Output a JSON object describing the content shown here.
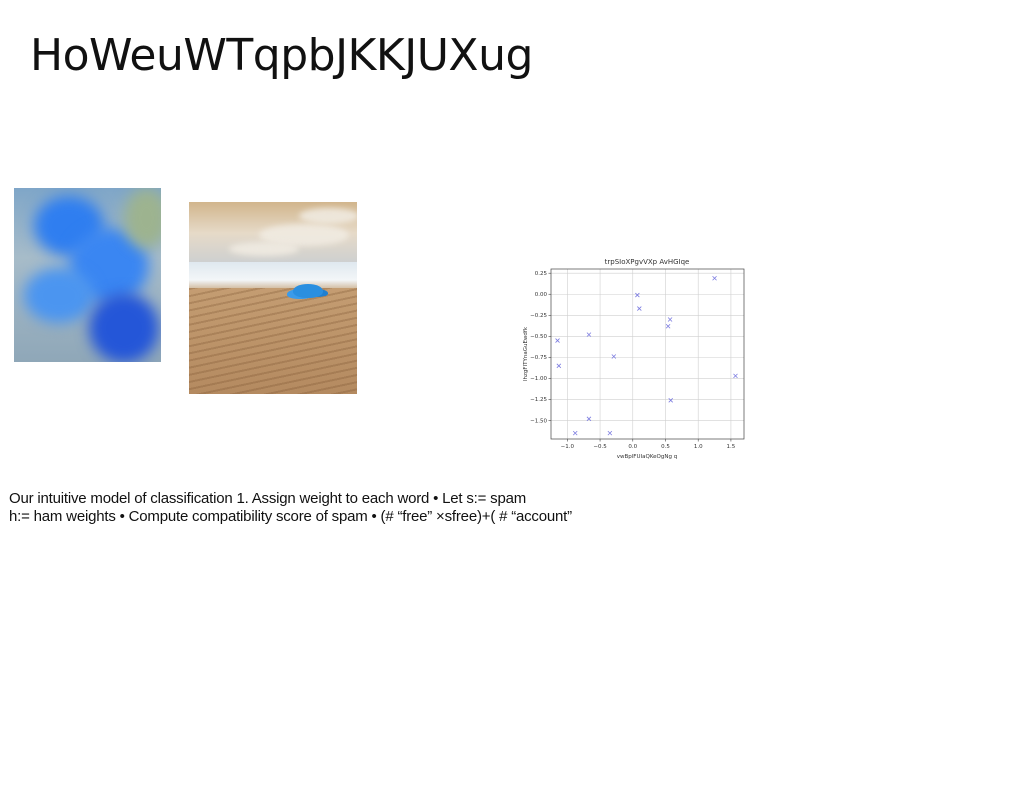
{
  "slide": {
    "title": "HoWeuWTqpbJKKJUXug",
    "body_lines": [
      "Our intuitive model of classification 1. Assign weight to each word • Let s:= spam",
      "h:= ham weights • Compute compatibility score of spam • (# “free” ×sfree)+( # “account”"
    ]
  },
  "images": [
    {
      "subject": "blue flower close-up"
    },
    {
      "subject": "desert dunes with blue tree"
    }
  ],
  "chart_data": {
    "type": "scatter",
    "title": "trpSIoXPgvVXp AvHGIqe",
    "xlabel": "vwBplFUIaQKeOgNg q",
    "ylabel": "lhzgFITYnaGuEwdfk",
    "xlim": [
      -1.25,
      1.7
    ],
    "ylim": [
      -1.72,
      0.3
    ],
    "xticks": [
      "−1.0",
      "−0.5",
      "0.0",
      "0.5",
      "1.0",
      "1.5"
    ],
    "xtick_values": [
      -1.0,
      -0.5,
      0.0,
      0.5,
      1.0,
      1.5
    ],
    "yticks": [
      "0.25",
      "0.00",
      "−0.25",
      "−0.50",
      "−0.75",
      "−1.00",
      "−1.25",
      "−1.50"
    ],
    "ytick_values": [
      0.25,
      0.0,
      -0.25,
      -0.5,
      -0.75,
      -1.0,
      -1.25,
      -1.5
    ],
    "grid": true,
    "marker": "x",
    "color": "#7b7be0",
    "points": [
      {
        "x": -1.15,
        "y": -0.55
      },
      {
        "x": -1.13,
        "y": -0.85
      },
      {
        "x": -0.88,
        "y": -1.65
      },
      {
        "x": -0.67,
        "y": -0.48
      },
      {
        "x": -0.67,
        "y": -1.48
      },
      {
        "x": -0.35,
        "y": -1.65
      },
      {
        "x": -0.29,
        "y": -0.74
      },
      {
        "x": 0.07,
        "y": -0.01
      },
      {
        "x": 0.1,
        "y": -0.17
      },
      {
        "x": 0.54,
        "y": -0.38
      },
      {
        "x": 0.57,
        "y": -0.3
      },
      {
        "x": 0.58,
        "y": -1.26
      },
      {
        "x": 1.25,
        "y": 0.19
      },
      {
        "x": 1.57,
        "y": -0.97
      }
    ]
  }
}
